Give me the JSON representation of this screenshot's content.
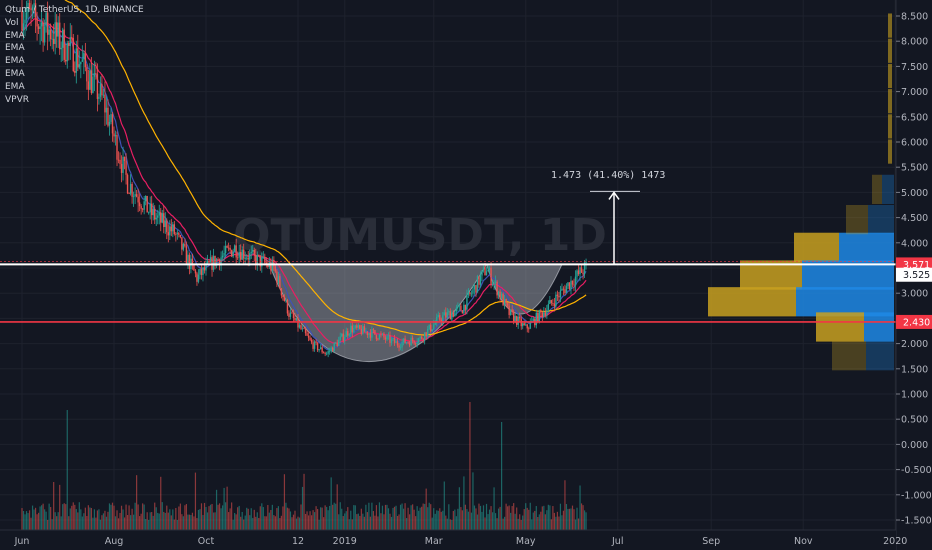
{
  "legend": {
    "title": "Qtum / TetherUS, 1D, BINANCE",
    "indicators": [
      "Vol",
      "EMA",
      "EMA",
      "EMA",
      "EMA",
      "EMA",
      "VPVR"
    ]
  },
  "watermark": "QTUMUSDT, 1D",
  "measure": {
    "text": "1.473 (41.40%) 1473"
  },
  "price_tags": [
    {
      "label": "3.571",
      "value": 3.571,
      "bg": "#f23645",
      "fg": "#ffffff"
    },
    {
      "label": "3.525",
      "value": 3.525,
      "bg": "#ffffff",
      "fg": "#131722"
    },
    {
      "label": "2.430",
      "value": 2.43,
      "bg": "#f23645",
      "fg": "#ffffff"
    }
  ],
  "colors": {
    "bg": "#131722",
    "up": "#26a69a",
    "down": "#ef5350",
    "grid": "#1e222d",
    "ema_fast": "#3f51b5",
    "ema_mid": "#e91e63",
    "ema_slow": "#ffb300",
    "vp_up": "#1e88e5",
    "vp_down": "#c8a020",
    "red_line": "#f23645",
    "white_line": "#ffffff"
  },
  "chart_data": {
    "type": "candlestick",
    "y_axis": {
      "ticks": [
        "8.500",
        "8.000",
        "7.500",
        "7.000",
        "6.500",
        "6.000",
        "5.500",
        "5.000",
        "4.500",
        "4.000",
        "3.500",
        "3.000",
        "2.500",
        "2.000",
        "1.500",
        "1.000",
        "0.500",
        "0.000",
        "-0.500",
        "-1.000",
        "-1.500"
      ],
      "range": [
        -1.6,
        8.8
      ]
    },
    "x_axis": {
      "ticks": [
        "Jun",
        "Aug",
        "Oct",
        "12",
        "2019",
        "Mar",
        "May",
        "Jul",
        "Sep",
        "Nov",
        "2020"
      ]
    },
    "price_path": [
      [
        "2018-06-01",
        8.6
      ],
      [
        "2018-06-20",
        8.2
      ],
      [
        "2018-07-10",
        7.6
      ],
      [
        "2018-07-25",
        6.8
      ],
      [
        "2018-08-10",
        5.2
      ],
      [
        "2018-08-25",
        4.6
      ],
      [
        "2018-09-10",
        4.2
      ],
      [
        "2018-09-25",
        3.3
      ],
      [
        "2018-10-05",
        3.6
      ],
      [
        "2018-10-20",
        3.9
      ],
      [
        "2018-11-01",
        3.7
      ],
      [
        "2018-11-15",
        3.5
      ],
      [
        "2018-11-25",
        2.6
      ],
      [
        "2018-12-10",
        2.0
      ],
      [
        "2018-12-20",
        1.8
      ],
      [
        "2019-01-05",
        2.3
      ],
      [
        "2019-01-20",
        2.2
      ],
      [
        "2019-02-05",
        2.0
      ],
      [
        "2019-02-20",
        2.1
      ],
      [
        "2019-03-05",
        2.5
      ],
      [
        "2019-03-20",
        2.7
      ],
      [
        "2019-04-05",
        3.5
      ],
      [
        "2019-04-20",
        2.6
      ],
      [
        "2019-05-01",
        2.3
      ],
      [
        "2019-05-15",
        2.7
      ],
      [
        "2019-05-30",
        3.2
      ],
      [
        "2019-06-10",
        3.52
      ]
    ],
    "horizontal_lines": [
      3.571,
      2.43
    ],
    "volume_spikes": [
      "2018-07-01",
      "2019-03-25",
      "2019-04-15"
    ]
  }
}
